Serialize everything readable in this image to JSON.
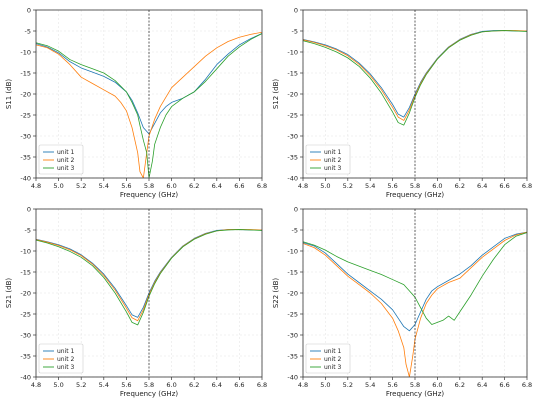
{
  "chart_data": [
    {
      "type": "line",
      "id": "s11",
      "xlabel": "Frequency (GHz)",
      "ylabel": "S11 (dB)",
      "xlim": [
        4.8,
        6.8
      ],
      "ylim": [
        -40,
        0
      ],
      "xticks": [
        "4.8",
        "5.0",
        "5.2",
        "5.4",
        "5.6",
        "5.8",
        "6.0",
        "6.2",
        "6.4",
        "6.6",
        "6.8"
      ],
      "yticks": [
        "0",
        "-5",
        "-10",
        "-15",
        "-20",
        "-25",
        "-30",
        "-35",
        "-40"
      ],
      "grid": true,
      "legend": "lower-left",
      "vline": 5.8,
      "series": [
        {
          "name": "unit 1",
          "color": "#1f77b4",
          "x": [
            4.8,
            4.9,
            5.0,
            5.1,
            5.2,
            5.3,
            5.4,
            5.5,
            5.6,
            5.65,
            5.7,
            5.75,
            5.8,
            5.85,
            5.9,
            5.95,
            6.0,
            6.1,
            6.2,
            6.3,
            6.4,
            6.5,
            6.6,
            6.7,
            6.8
          ],
          "y": [
            -8.0,
            -8.8,
            -10.2,
            -12.3,
            -13.8,
            -14.8,
            -15.8,
            -17.2,
            -19.5,
            -21.5,
            -24.5,
            -28.0,
            -29.5,
            -27.0,
            -24.5,
            -23.0,
            -22.0,
            -21.0,
            -19.5,
            -16.5,
            -13.0,
            -10.5,
            -8.3,
            -6.8,
            -5.6
          ]
        },
        {
          "name": "unit 2",
          "color": "#ff7f0e",
          "x": [
            4.8,
            4.9,
            5.0,
            5.1,
            5.2,
            5.3,
            5.4,
            5.5,
            5.55,
            5.6,
            5.65,
            5.7,
            5.72,
            5.75,
            5.78,
            5.8,
            5.85,
            5.9,
            6.0,
            6.1,
            6.2,
            6.3,
            6.4,
            6.5,
            6.6,
            6.7,
            6.8
          ],
          "y": [
            -8.3,
            -9.0,
            -10.5,
            -13.0,
            -16.0,
            -17.5,
            -19.0,
            -20.5,
            -22.0,
            -24.0,
            -28.0,
            -34.0,
            -38.5,
            -40.0,
            -34.0,
            -30.0,
            -26.0,
            -23.0,
            -18.5,
            -16.0,
            -13.5,
            -11.0,
            -9.0,
            -7.5,
            -6.5,
            -5.8,
            -5.3
          ]
        },
        {
          "name": "unit 3",
          "color": "#2ca02c",
          "x": [
            4.8,
            4.9,
            5.0,
            5.1,
            5.2,
            5.3,
            5.4,
            5.5,
            5.6,
            5.65,
            5.7,
            5.72,
            5.75,
            5.78,
            5.8,
            5.83,
            5.85,
            5.9,
            5.95,
            6.0,
            6.1,
            6.2,
            6.3,
            6.4,
            6.5,
            6.6,
            6.7,
            6.8
          ],
          "y": [
            -7.8,
            -8.5,
            -9.8,
            -11.8,
            -13.0,
            -14.0,
            -15.0,
            -16.8,
            -19.5,
            -22.0,
            -25.0,
            -27.5,
            -31.0,
            -34.0,
            -40.0,
            -36.0,
            -32.0,
            -28.0,
            -25.0,
            -23.0,
            -21.0,
            -19.5,
            -17.0,
            -14.0,
            -11.0,
            -8.8,
            -7.0,
            -5.6
          ]
        }
      ]
    },
    {
      "type": "line",
      "id": "s12",
      "xlabel": "Frequency (GHz)",
      "ylabel": "S12 (dB)",
      "xlim": [
        4.8,
        6.8
      ],
      "ylim": [
        -40,
        0
      ],
      "xticks": [
        "4.8",
        "5.0",
        "5.2",
        "5.4",
        "5.6",
        "5.8",
        "6.0",
        "6.2",
        "6.4",
        "6.6",
        "6.8"
      ],
      "yticks": [
        "0",
        "-5",
        "-10",
        "-15",
        "-20",
        "-25",
        "-30",
        "-35",
        "-40"
      ],
      "grid": true,
      "legend": "lower-left",
      "vline": 5.8,
      "series": [
        {
          "name": "unit 1",
          "color": "#1f77b4",
          "x": [
            4.8,
            4.9,
            5.0,
            5.1,
            5.2,
            5.3,
            5.4,
            5.5,
            5.6,
            5.65,
            5.7,
            5.75,
            5.8,
            5.85,
            5.9,
            6.0,
            6.1,
            6.2,
            6.3,
            6.4,
            6.5,
            6.6,
            6.7,
            6.8
          ],
          "y": [
            -7.0,
            -7.6,
            -8.3,
            -9.3,
            -10.6,
            -12.6,
            -15.2,
            -18.5,
            -22.5,
            -24.8,
            -25.5,
            -23.2,
            -20.0,
            -17.2,
            -15.0,
            -11.5,
            -8.8,
            -7.0,
            -5.8,
            -5.1,
            -4.9,
            -4.9,
            -5.0,
            -5.0
          ]
        },
        {
          "name": "unit 2",
          "color": "#ff7f0e",
          "x": [
            4.8,
            4.9,
            5.0,
            5.1,
            5.2,
            5.3,
            5.4,
            5.5,
            5.6,
            5.65,
            5.7,
            5.75,
            5.8,
            5.85,
            5.9,
            6.0,
            6.1,
            6.2,
            6.3,
            6.4,
            6.5,
            6.6,
            6.7,
            6.8
          ],
          "y": [
            -7.1,
            -7.7,
            -8.5,
            -9.5,
            -10.9,
            -12.9,
            -15.6,
            -19.0,
            -23.2,
            -25.5,
            -26.3,
            -23.8,
            -20.4,
            -17.5,
            -15.2,
            -11.6,
            -8.9,
            -7.1,
            -5.9,
            -5.2,
            -5.0,
            -4.9,
            -4.9,
            -5.0
          ]
        },
        {
          "name": "unit 3",
          "color": "#2ca02c",
          "x": [
            4.8,
            4.9,
            5.0,
            5.1,
            5.2,
            5.3,
            5.4,
            5.5,
            5.6,
            5.65,
            5.7,
            5.75,
            5.8,
            5.85,
            5.9,
            6.0,
            6.1,
            6.2,
            6.3,
            6.4,
            6.5,
            6.6,
            6.7,
            6.8
          ],
          "y": [
            -7.3,
            -8.0,
            -8.9,
            -10.0,
            -11.4,
            -13.4,
            -16.2,
            -19.8,
            -24.3,
            -26.8,
            -27.4,
            -24.5,
            -20.8,
            -17.8,
            -15.4,
            -11.7,
            -9.0,
            -7.2,
            -6.0,
            -5.2,
            -5.0,
            -4.9,
            -5.0,
            -5.1
          ]
        }
      ]
    },
    {
      "type": "line",
      "id": "s21",
      "xlabel": "Frequency (GHz)",
      "ylabel": "S21 (dB)",
      "xlim": [
        4.8,
        6.8
      ],
      "ylim": [
        -40,
        0
      ],
      "xticks": [
        "4.8",
        "5.0",
        "5.2",
        "5.4",
        "5.6",
        "5.8",
        "6.0",
        "6.2",
        "6.4",
        "6.6",
        "6.8"
      ],
      "yticks": [
        "0",
        "-5",
        "-10",
        "-15",
        "-20",
        "-25",
        "-30",
        "-35",
        "-40"
      ],
      "grid": true,
      "legend": "lower-left",
      "vline": 5.8,
      "series": [
        {
          "name": "unit 1",
          "color": "#1f77b4",
          "x": [
            4.8,
            4.9,
            5.0,
            5.1,
            5.2,
            5.3,
            5.4,
            5.5,
            5.6,
            5.65,
            5.7,
            5.75,
            5.8,
            5.85,
            5.9,
            6.0,
            6.1,
            6.2,
            6.3,
            6.4,
            6.5,
            6.6,
            6.7,
            6.8
          ],
          "y": [
            -7.2,
            -7.8,
            -8.5,
            -9.5,
            -10.9,
            -12.9,
            -15.5,
            -18.9,
            -23.0,
            -25.2,
            -25.8,
            -23.4,
            -20.0,
            -17.2,
            -15.0,
            -11.5,
            -8.8,
            -7.0,
            -5.8,
            -5.1,
            -4.9,
            -4.9,
            -5.0,
            -5.0
          ]
        },
        {
          "name": "unit 2",
          "color": "#ff7f0e",
          "x": [
            4.8,
            4.9,
            5.0,
            5.1,
            5.2,
            5.3,
            5.4,
            5.5,
            5.6,
            5.65,
            5.7,
            5.75,
            5.8,
            5.85,
            5.9,
            6.0,
            6.1,
            6.2,
            6.3,
            6.4,
            6.5,
            6.6,
            6.7,
            6.8
          ],
          "y": [
            -7.3,
            -7.9,
            -8.7,
            -9.7,
            -11.1,
            -13.1,
            -15.8,
            -19.3,
            -23.6,
            -25.9,
            -26.6,
            -24.0,
            -20.4,
            -17.5,
            -15.2,
            -11.6,
            -8.9,
            -7.1,
            -5.9,
            -5.2,
            -4.9,
            -4.9,
            -4.9,
            -5.0
          ]
        },
        {
          "name": "unit 3",
          "color": "#2ca02c",
          "x": [
            4.8,
            4.9,
            5.0,
            5.1,
            5.2,
            5.3,
            5.4,
            5.5,
            5.6,
            5.65,
            5.7,
            5.75,
            5.8,
            5.85,
            5.9,
            6.0,
            6.1,
            6.2,
            6.3,
            6.4,
            6.5,
            6.6,
            6.7,
            6.8
          ],
          "y": [
            -7.4,
            -8.1,
            -9.0,
            -10.1,
            -11.5,
            -13.5,
            -16.3,
            -20.0,
            -24.5,
            -27.0,
            -27.6,
            -24.6,
            -20.8,
            -17.8,
            -15.4,
            -11.7,
            -9.0,
            -7.2,
            -6.0,
            -5.2,
            -5.0,
            -4.9,
            -5.0,
            -5.1
          ]
        }
      ]
    },
    {
      "type": "line",
      "id": "s22",
      "xlabel": "Frequency (GHz)",
      "ylabel": "S22 (dB)",
      "xlim": [
        4.8,
        6.8
      ],
      "ylim": [
        -40,
        0
      ],
      "xticks": [
        "4.8",
        "5.0",
        "5.2",
        "5.4",
        "5.6",
        "5.8",
        "6.0",
        "6.2",
        "6.4",
        "6.6",
        "6.8"
      ],
      "yticks": [
        "0",
        "-5",
        "-10",
        "-15",
        "-20",
        "-25",
        "-30",
        "-35",
        "-40"
      ],
      "grid": true,
      "legend": "lower-left",
      "vline": 5.8,
      "series": [
        {
          "name": "unit 1",
          "color": "#1f77b4",
          "x": [
            4.8,
            4.9,
            5.0,
            5.1,
            5.2,
            5.3,
            5.4,
            5.5,
            5.6,
            5.65,
            5.7,
            5.75,
            5.8,
            5.85,
            5.9,
            5.95,
            6.0,
            6.1,
            6.2,
            6.3,
            6.4,
            6.5,
            6.6,
            6.7,
            6.8
          ],
          "y": [
            -8.0,
            -8.8,
            -10.5,
            -13.0,
            -15.5,
            -17.5,
            -19.5,
            -21.5,
            -24.0,
            -26.0,
            -28.0,
            -29.0,
            -27.5,
            -24.5,
            -21.5,
            -19.5,
            -18.5,
            -17.0,
            -15.5,
            -13.5,
            -11.0,
            -9.0,
            -7.0,
            -6.0,
            -5.5
          ]
        },
        {
          "name": "unit 2",
          "color": "#ff7f0e",
          "x": [
            4.8,
            4.9,
            5.0,
            5.1,
            5.2,
            5.3,
            5.4,
            5.5,
            5.6,
            5.65,
            5.7,
            5.72,
            5.75,
            5.78,
            5.8,
            5.85,
            5.9,
            5.95,
            6.0,
            6.1,
            6.2,
            6.3,
            6.4,
            6.5,
            6.6,
            6.7,
            6.8
          ],
          "y": [
            -8.2,
            -9.2,
            -11.0,
            -13.5,
            -16.0,
            -18.0,
            -20.0,
            -22.5,
            -26.0,
            -29.0,
            -33.0,
            -37.0,
            -40.0,
            -35.0,
            -31.0,
            -26.0,
            -22.5,
            -20.5,
            -19.0,
            -17.5,
            -16.5,
            -14.0,
            -11.5,
            -9.5,
            -7.5,
            -6.2,
            -5.5
          ]
        },
        {
          "name": "unit 3",
          "color": "#2ca02c",
          "x": [
            4.8,
            4.9,
            5.0,
            5.1,
            5.2,
            5.3,
            5.4,
            5.5,
            5.6,
            5.7,
            5.75,
            5.8,
            5.85,
            5.9,
            5.95,
            6.0,
            6.05,
            6.1,
            6.15,
            6.2,
            6.3,
            6.4,
            6.5,
            6.6,
            6.7,
            6.8
          ],
          "y": [
            -7.8,
            -8.6,
            -9.8,
            -11.3,
            -12.6,
            -13.6,
            -14.6,
            -15.6,
            -16.8,
            -18.0,
            -19.5,
            -21.0,
            -23.5,
            -26.0,
            -27.5,
            -27.0,
            -26.5,
            -25.5,
            -26.5,
            -24.5,
            -20.5,
            -16.0,
            -12.0,
            -8.5,
            -6.5,
            -5.6
          ]
        }
      ]
    }
  ]
}
